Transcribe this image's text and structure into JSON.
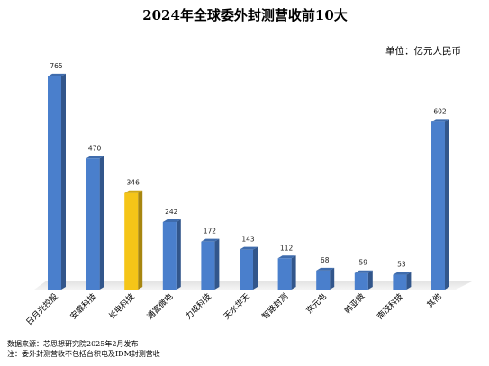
{
  "chart_data": {
    "type": "bar",
    "title": "2024年全球委外封测营收前10大",
    "unit_label": "单位：亿元人民币",
    "categories": [
      "日月光控股",
      "安靠科技",
      "长电科技",
      "通富微电",
      "力成科技",
      "天水华天",
      "智路封测",
      "京元电",
      "韩亚微",
      "南茂科技",
      "其他"
    ],
    "values": [
      765,
      470,
      346,
      242,
      172,
      143,
      112,
      68,
      59,
      53,
      602
    ],
    "highlight_index": 2,
    "colors": {
      "bar": "#4a7fcc",
      "highlight": "#f5c518"
    },
    "ylim": [
      0,
      800
    ],
    "grid": false,
    "legend": "none"
  },
  "footnotes": {
    "source": "数据来源：芯思想研究院2025年2月发布",
    "note": "注：委外封测营收不包括台积电及IDM封测营收"
  }
}
